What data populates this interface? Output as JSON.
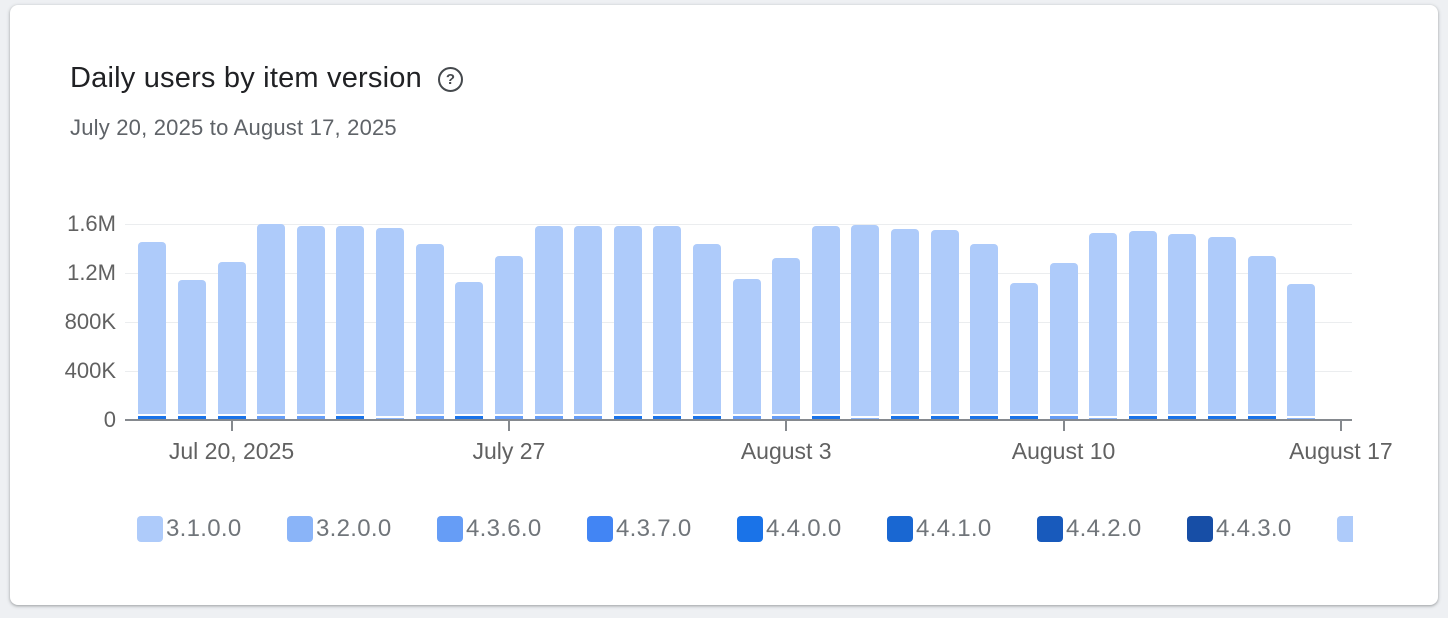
{
  "header": {
    "title": "Daily users by item version",
    "help_glyph": "?",
    "date_range": "July 20, 2025 to August 17, 2025"
  },
  "colors": {
    "bar_main": "#aecbfa",
    "card_background": "#ffffff",
    "page_background": "#eef0f3",
    "axis_line": "#85898e",
    "gridline": "#ebedef",
    "axis_label_text": "#616161",
    "legend_text": "#70757a",
    "title_text": "#202124",
    "subtitle_text": "#5f6368"
  },
  "chart_data": {
    "type": "bar",
    "stacked": true,
    "title": "Daily users by item version",
    "xlabel": "",
    "ylabel": "",
    "ylim": [
      0,
      1700000
    ],
    "grid": true,
    "legend_position": "bottom",
    "y_axis": {
      "ticks": [
        {
          "label": "0",
          "value": 0
        },
        {
          "label": "400K",
          "value": 400000
        },
        {
          "label": "800K",
          "value": 800000
        },
        {
          "label": "1.2M",
          "value": 1200000
        },
        {
          "label": "1.6M",
          "value": 1600000
        }
      ]
    },
    "x_axis": {
      "ticks": [
        {
          "label": "Jul 20, 2025",
          "day_index": 2
        },
        {
          "label": "July 27",
          "day_index": 9
        },
        {
          "label": "August 3",
          "day_index": 16
        },
        {
          "label": "August 10",
          "day_index": 23
        },
        {
          "label": "August 17",
          "day_index": 30
        }
      ]
    },
    "legend": [
      {
        "label": "3.1.0.0",
        "color": "#aecbfa",
        "clipped": false
      },
      {
        "label": "3.2.0.0",
        "color": "#8ab4f8",
        "clipped": false
      },
      {
        "label": "4.3.6.0",
        "color": "#669df6",
        "clipped": false
      },
      {
        "label": "4.3.7.0",
        "color": "#4285f4",
        "clipped": false
      },
      {
        "label": "4.4.0.0",
        "color": "#1a73e8",
        "clipped": false
      },
      {
        "label": "4.4.1.0",
        "color": "#1967d2",
        "clipped": false
      },
      {
        "label": "4.4.2.0",
        "color": "#185abc",
        "clipped": false
      },
      {
        "label": "4.4.3.0",
        "color": "#174ea6",
        "clipped": false
      },
      {
        "label": "",
        "color": "#aecbfa",
        "clipped": true
      }
    ],
    "bars": [
      {
        "date": "Jul 18",
        "total": 1450000,
        "base_value": 35000,
        "base_color": "#1a73e8"
      },
      {
        "date": "Jul 19",
        "total": 1140000,
        "base_value": 35000,
        "base_color": "#1a73e8"
      },
      {
        "date": "Jul 20",
        "total": 1290000,
        "base_value": 35000,
        "base_color": "#1a73e8"
      },
      {
        "date": "Jul 21",
        "total": 1600000,
        "base_value": 30000,
        "base_color": "#669df6"
      },
      {
        "date": "Jul 22",
        "total": 1580000,
        "base_value": 30000,
        "base_color": "#669df6"
      },
      {
        "date": "Jul 23",
        "total": 1585000,
        "base_value": 35000,
        "base_color": "#1a73e8"
      },
      {
        "date": "Jul 24",
        "total": 1570000,
        "base_value": 18000,
        "base_color": "#8ab4f8"
      },
      {
        "date": "Jul 25",
        "total": 1440000,
        "base_value": 30000,
        "base_color": "#669df6"
      },
      {
        "date": "Jul 26",
        "total": 1130000,
        "base_value": 35000,
        "base_color": "#1a73e8"
      },
      {
        "date": "Jul 27",
        "total": 1340000,
        "base_value": 30000,
        "base_color": "#669df6"
      },
      {
        "date": "Jul 28",
        "total": 1580000,
        "base_value": 30000,
        "base_color": "#669df6"
      },
      {
        "date": "Jul 29",
        "total": 1585000,
        "base_value": 30000,
        "base_color": "#669df6"
      },
      {
        "date": "Jul 30",
        "total": 1580000,
        "base_value": 35000,
        "base_color": "#1a73e8"
      },
      {
        "date": "Jul 31",
        "total": 1580000,
        "base_value": 35000,
        "base_color": "#1a73e8"
      },
      {
        "date": "Aug 1",
        "total": 1440000,
        "base_value": 35000,
        "base_color": "#1a73e8"
      },
      {
        "date": "Aug 2",
        "total": 1150000,
        "base_value": 30000,
        "base_color": "#669df6"
      },
      {
        "date": "Aug 3",
        "total": 1320000,
        "base_value": 30000,
        "base_color": "#669df6"
      },
      {
        "date": "Aug 4",
        "total": 1585000,
        "base_value": 35000,
        "base_color": "#1a73e8"
      },
      {
        "date": "Aug 5",
        "total": 1590000,
        "base_value": 18000,
        "base_color": "#8ab4f8"
      },
      {
        "date": "Aug 6",
        "total": 1560000,
        "base_value": 35000,
        "base_color": "#1a73e8"
      },
      {
        "date": "Aug 7",
        "total": 1550000,
        "base_value": 35000,
        "base_color": "#1a73e8"
      },
      {
        "date": "Aug 8",
        "total": 1440000,
        "base_value": 35000,
        "base_color": "#1a73e8"
      },
      {
        "date": "Aug 9",
        "total": 1120000,
        "base_value": 35000,
        "base_color": "#1a73e8"
      },
      {
        "date": "Aug 10",
        "total": 1280000,
        "base_value": 30000,
        "base_color": "#669df6"
      },
      {
        "date": "Aug 11",
        "total": 1530000,
        "base_value": 18000,
        "base_color": "#8ab4f8"
      },
      {
        "date": "Aug 12",
        "total": 1540000,
        "base_value": 35000,
        "base_color": "#1a73e8"
      },
      {
        "date": "Aug 13",
        "total": 1520000,
        "base_value": 35000,
        "base_color": "#1a73e8"
      },
      {
        "date": "Aug 14",
        "total": 1490000,
        "base_value": 35000,
        "base_color": "#1a73e8"
      },
      {
        "date": "Aug 15",
        "total": 1340000,
        "base_value": 35000,
        "base_color": "#1a73e8"
      },
      {
        "date": "Aug 16",
        "total": 1110000,
        "base_value": 18000,
        "base_color": "#8ab4f8"
      }
    ]
  }
}
